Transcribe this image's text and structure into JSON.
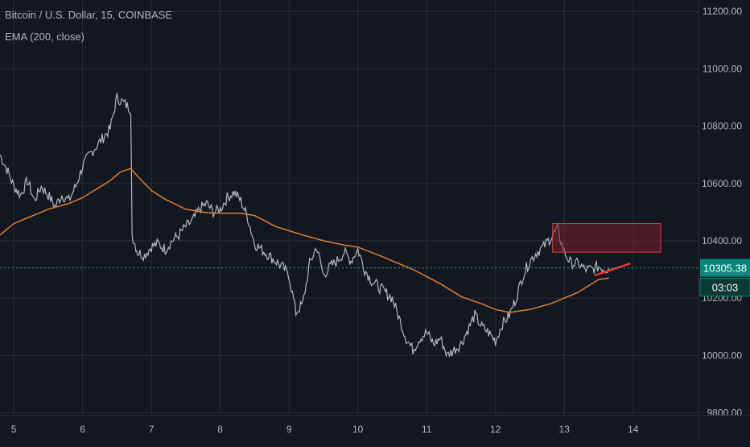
{
  "header": {
    "symbol_line": "Bitcoin / U.S. Dollar, 15, COINBASE",
    "indicator_line": "EMA (200, close)"
  },
  "colors": {
    "background": "#131722",
    "grid": "#2a2e39",
    "axis_text": "#b2b5be",
    "candle": "#d1d4dc",
    "ema": "#e0802b",
    "last_price_line": "#26a69a",
    "last_price_box": "#00897b",
    "zone_fill": "#7a1f2b",
    "zone_border": "#e53935",
    "arrow": "#e53935"
  },
  "chart_data": {
    "type": "line",
    "title": "Bitcoin / U.S. Dollar, 15, COINBASE",
    "xlabel": "",
    "ylabel": "",
    "x_ticks": [
      "5",
      "6",
      "7",
      "8",
      "9",
      "10",
      "11",
      "12",
      "13",
      "14"
    ],
    "y_ticks": [
      "9800.00",
      "10000.00",
      "10200.00",
      "10400.00",
      "10600.00",
      "10800.00",
      "11000.00",
      "11200.00"
    ],
    "ylim": [
      9790,
      11240
    ],
    "xlim": [
      4.8,
      14.95
    ],
    "grid": true,
    "last_price": 10305.38,
    "last_price_label": "10305.38",
    "countdown_label": "03:03",
    "series": [
      {
        "type": "price",
        "x": [
          4.8,
          4.9,
          5.0,
          5.1,
          5.2,
          5.3,
          5.4,
          5.5,
          5.6,
          5.7,
          5.8,
          5.9,
          6.0,
          6.1,
          6.2,
          6.3,
          6.4,
          6.5,
          6.6,
          6.7,
          6.72,
          6.8,
          6.9,
          7.0,
          7.1,
          7.2,
          7.3,
          7.4,
          7.5,
          7.6,
          7.7,
          7.8,
          7.9,
          8.0,
          8.1,
          8.2,
          8.3,
          8.4,
          8.5,
          8.6,
          8.7,
          8.8,
          8.9,
          9.0,
          9.1,
          9.2,
          9.3,
          9.4,
          9.5,
          9.6,
          9.7,
          9.8,
          9.9,
          10.0,
          10.1,
          10.2,
          10.3,
          10.4,
          10.5,
          10.6,
          10.7,
          10.8,
          10.9,
          11.0,
          11.1,
          11.2,
          11.3,
          11.4,
          11.5,
          11.6,
          11.7,
          11.8,
          11.9,
          12.0,
          12.1,
          12.2,
          12.3,
          12.4,
          12.5,
          12.6,
          12.7,
          12.8,
          12.9,
          13.0,
          13.1,
          13.2,
          13.3,
          13.4,
          13.5,
          13.6,
          13.65
        ],
        "values": [
          10700,
          10650,
          10590,
          10560,
          10610,
          10540,
          10590,
          10560,
          10520,
          10560,
          10540,
          10590,
          10660,
          10700,
          10730,
          10760,
          10790,
          10900,
          10880,
          10860,
          10420,
          10360,
          10350,
          10380,
          10390,
          10370,
          10400,
          10420,
          10450,
          10470,
          10510,
          10530,
          10500,
          10510,
          10550,
          10570,
          10540,
          10480,
          10390,
          10370,
          10350,
          10330,
          10310,
          10280,
          10150,
          10180,
          10320,
          10380,
          10280,
          10310,
          10330,
          10360,
          10330,
          10370,
          10300,
          10260,
          10240,
          10220,
          10200,
          10130,
          10060,
          10020,
          10060,
          10080,
          10040,
          10060,
          10000,
          10020,
          10040,
          10090,
          10140,
          10100,
          10080,
          10050,
          10110,
          10140,
          10200,
          10280,
          10330,
          10360,
          10380,
          10410,
          10440,
          10360,
          10320,
          10320,
          10300,
          10300,
          10310,
          10300,
          10305
        ]
      },
      {
        "type": "ema",
        "x": [
          4.8,
          5.0,
          5.2,
          5.5,
          5.8,
          6.0,
          6.2,
          6.4,
          6.55,
          6.7,
          6.8,
          7.0,
          7.2,
          7.5,
          7.8,
          8.0,
          8.3,
          8.5,
          8.8,
          9.0,
          9.2,
          9.5,
          9.8,
          10.0,
          10.3,
          10.5,
          10.8,
          11.0,
          11.2,
          11.5,
          11.8,
          12.0,
          12.2,
          12.5,
          12.8,
          13.0,
          13.2,
          13.4,
          13.5,
          13.65
        ],
        "values": [
          10420,
          10460,
          10480,
          10510,
          10530,
          10550,
          10580,
          10610,
          10640,
          10652,
          10625,
          10575,
          10545,
          10510,
          10498,
          10496,
          10496,
          10488,
          10450,
          10435,
          10420,
          10400,
          10385,
          10378,
          10350,
          10330,
          10300,
          10275,
          10250,
          10205,
          10180,
          10160,
          10150,
          10160,
          10180,
          10200,
          10220,
          10250,
          10265,
          10270
        ]
      }
    ],
    "zone": {
      "x0": 12.83,
      "x1": 14.4,
      "y0": 10360,
      "y1": 10460
    },
    "arrow": {
      "x0": 13.45,
      "y0": 10280,
      "x1": 13.95,
      "y1": 10320
    }
  }
}
